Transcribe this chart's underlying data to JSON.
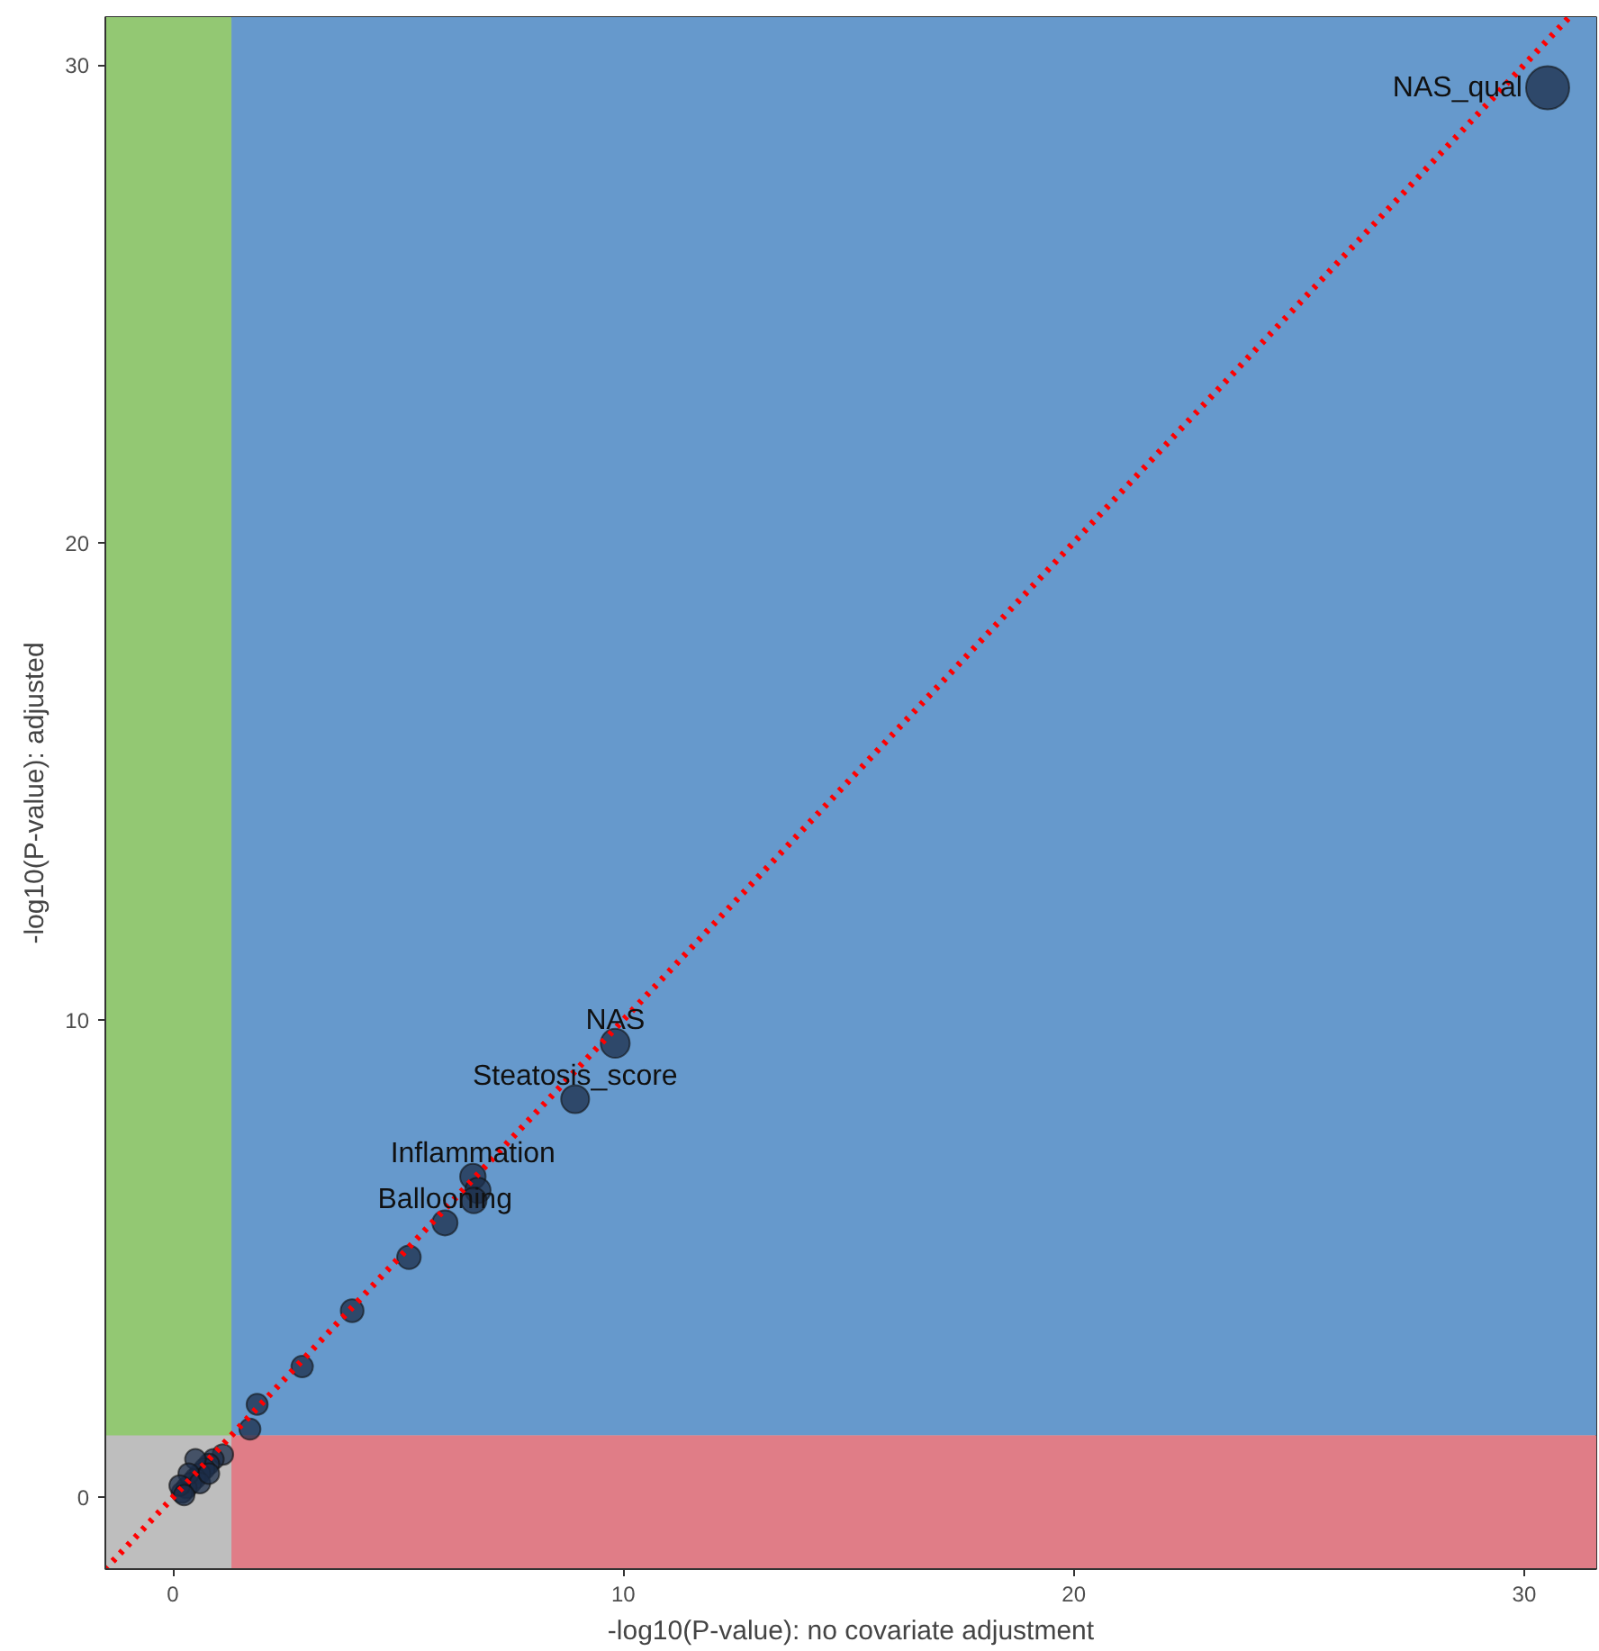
{
  "chart_data": {
    "type": "bubble",
    "xlabel": "-log10(P-value): no covariate adjustment",
    "ylabel": "-log10(P-value): adjusted",
    "xlim": [
      -1.5,
      31.6
    ],
    "ylim": [
      -1.5,
      31.0
    ],
    "xticks": [
      0,
      10,
      20,
      30
    ],
    "yticks": [
      0,
      10,
      20,
      30
    ],
    "grid": false,
    "bands": [
      {
        "axis": "x",
        "from": -1.5,
        "to": 1.3,
        "color": "#93c873"
      },
      {
        "axis": "x",
        "from": 1.3,
        "to": 31.6,
        "color": "#6699cc"
      },
      {
        "axis": "y",
        "from": -1.5,
        "to": 1.3,
        "color": "#e07d87"
      }
    ],
    "series": [
      {
        "color": "#1c2e4a",
        "marker": "circle",
        "x": [
          30.52,
          9.82,
          8.93,
          6.66,
          6.77,
          6.68,
          6.04,
          5.24,
          3.98,
          2.87,
          1.87,
          1.71,
          1.11,
          0.9,
          0.8,
          0.7,
          0.6,
          0.5,
          0.4,
          0.3,
          0.2,
          0.5,
          0.35,
          0.15,
          0.6,
          0.8,
          0.25
        ],
        "values": [
          29.52,
          9.51,
          8.34,
          6.72,
          6.43,
          6.22,
          5.75,
          5.03,
          3.91,
          2.74,
          1.95,
          1.43,
          0.9,
          0.8,
          0.7,
          0.6,
          0.5,
          0.4,
          0.3,
          0.2,
          0.1,
          0.8,
          0.5,
          0.25,
          0.3,
          0.5,
          0.05
        ],
        "sizes": [
          1,
          0.45,
          0.42,
          0.35,
          0.35,
          0.35,
          0.34,
          0.3,
          0.28,
          0.25,
          0.24,
          0.24,
          0.23,
          0.23,
          0.23,
          0.23,
          0.23,
          0.23,
          0.23,
          0.23,
          0.23,
          0.23,
          0.23,
          0.23,
          0.23,
          0.23,
          0.23
        ]
      },
      {
        "type": "line",
        "color": "#ff0000",
        "line_style": "dotted",
        "x": [
          -1.5,
          31.0
        ],
        "values": [
          -1.5,
          31.0
        ]
      }
    ],
    "annotations": [
      {
        "text": "NAS_qual",
        "x": 30.52,
        "y": 29.52
      },
      {
        "text": "NAS",
        "x": 9.82,
        "y": 9.51
      },
      {
        "text": "Steatosis_score",
        "x": 8.93,
        "y": 8.34
      },
      {
        "text": "Inflammation",
        "x": 6.66,
        "y": 6.72
      },
      {
        "text": "Ballooning",
        "x": 6.04,
        "y": 5.75
      }
    ]
  }
}
